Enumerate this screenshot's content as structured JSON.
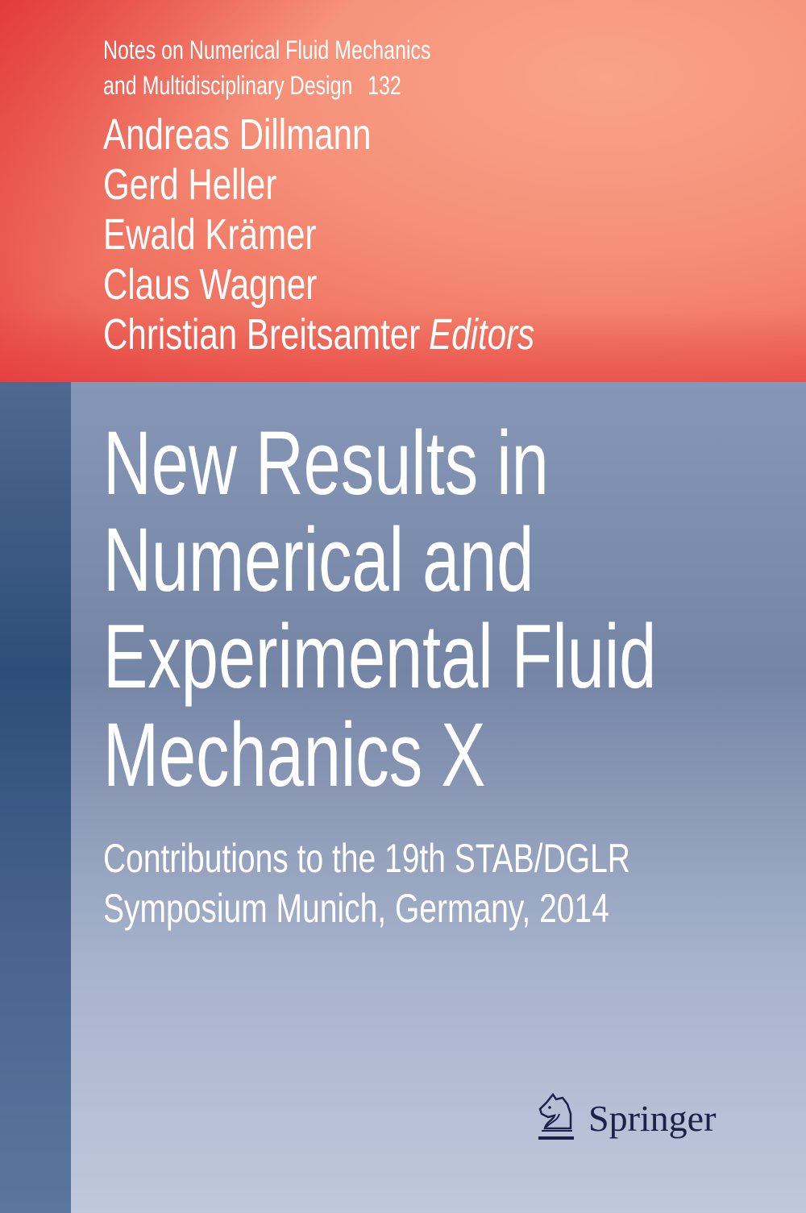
{
  "series": {
    "line1": "Notes on Numerical Fluid Mechanics",
    "line2": "and Multidisciplinary Design",
    "volume": "132"
  },
  "editors": [
    "Andreas Dillmann",
    "Gerd Heller",
    "Ewald Krämer",
    "Claus Wagner",
    "Christian Breitsamter"
  ],
  "editors_label": "Editors",
  "title": [
    "New Results in",
    "Numerical and",
    "Experimental Fluid",
    "Mechanics X"
  ],
  "subtitle": [
    "Contributions to the 19th STAB/DGLR",
    "Symposium Munich, Germany, 2014"
  ],
  "publisher": {
    "name": "Springer",
    "icon": "springer-knight-icon"
  },
  "colors": {
    "top_band": "#ef6b5b",
    "bottom_band": "#8596b6",
    "spine_strip": "#2d4e78",
    "logo": "#1b2148"
  }
}
